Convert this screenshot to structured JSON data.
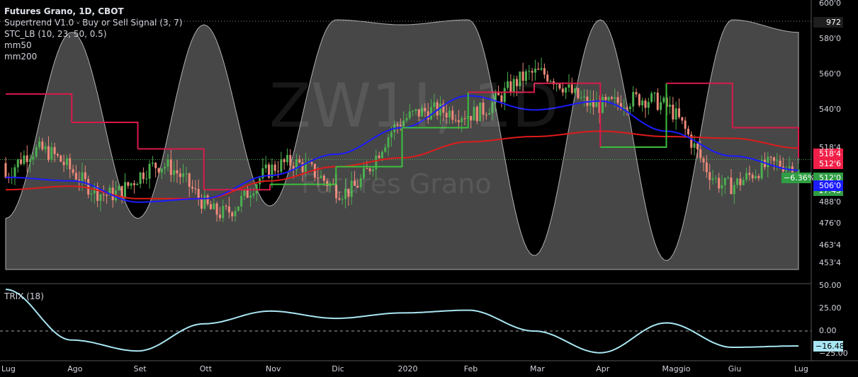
{
  "legend": {
    "title": "Futures Grano, 1D, CBOT",
    "lines": [
      "Supertrend V1.0 - Buy or Sell Signal (3, 7)",
      "STC_LB (10, 23, 50, 0.5)",
      "mm50",
      "mm200"
    ]
  },
  "watermark": {
    "big": "ZW1!, 1D",
    "small": "Futures Grano"
  },
  "trix_label": "TRIX (18)",
  "price_tags": [
    {
      "text": "518'4",
      "color": "#f01f48"
    },
    {
      "text": "512'6",
      "color": "#f01f48"
    },
    {
      "text": "−6.36%",
      "color": "#2f9e44"
    },
    {
      "text": "512'0",
      "color": "#2f9e44"
    },
    {
      "text": "17:43",
      "color": "#2f9e44"
    },
    {
      "text": "506'0",
      "color": "#1c1cff"
    },
    {
      "text": "972",
      "color": "#1e1e1e"
    },
    {
      "text": "−16.48",
      "color": "#a9e6f3"
    }
  ],
  "colors": {
    "background": "#000000",
    "stc_fill": "#9e9e9e",
    "supertrend_down": "#d81a4a",
    "supertrend_up": "#3cbf3c",
    "mm50": "#1c1cff",
    "mm200": "#e01b1b",
    "candle_up": "#4caf50",
    "candle_down": "#ef8a7a",
    "trix": "#a9e6f3"
  },
  "chart_data": [
    {
      "type": "line",
      "title": "Futures Grano, 1D, CBOT",
      "y_axis_ticks": [
        "600'0",
        "580'0",
        "560'0",
        "540'0",
        "518'4",
        "488'0",
        "476'0",
        "463'4",
        "453'4"
      ],
      "x_ticks": [
        "Lug",
        "Ago",
        "Set",
        "Ott",
        "Nov",
        "Dic",
        "2020",
        "Feb",
        "Mar",
        "Apr",
        "Maggio",
        "Giu",
        "Lug"
      ],
      "ylim": [
        450,
        600
      ],
      "x": [
        "Lug",
        "Ago",
        "Set",
        "Ott",
        "Nov",
        "Dic",
        "2020",
        "Feb",
        "Mar",
        "Apr",
        "Maggio",
        "Giu",
        "Lug"
      ],
      "series": [
        {
          "name": "mm50",
          "values": [
            502,
            500,
            488,
            490,
            503,
            515,
            530,
            548,
            540,
            545,
            528,
            514,
            506
          ]
        },
        {
          "name": "mm200",
          "values": [
            495,
            497,
            490,
            490,
            500,
            508,
            513,
            522,
            525,
            528,
            525,
            524,
            518.5
          ]
        },
        {
          "name": "Supertrend V1.0 - Buy or Sell Signal (3, 7)",
          "values": [
            549,
            533,
            518,
            495,
            498,
            508,
            530,
            550,
            555,
            519,
            555,
            530,
            513
          ]
        },
        {
          "name": "STC_LB (10, 23, 50, 0.5)",
          "values": [
            20,
            95,
            20,
            98,
            25,
            100,
            98,
            100,
            5,
            100,
            3,
            100,
            95
          ]
        }
      ],
      "last_price": 512.0,
      "change": "−6.36%"
    },
    {
      "type": "line",
      "title": "TRIX (18)",
      "y_axis_ticks": [
        "50.00",
        "25.00",
        "0.00",
        "−25.00"
      ],
      "ylim": [
        -25,
        50
      ],
      "x": [
        "Lug",
        "Ago",
        "Set",
        "Ott",
        "Nov",
        "Dic",
        "2020",
        "Feb",
        "Mar",
        "Apr",
        "Maggio",
        "Giu",
        "Lug"
      ],
      "series": [
        {
          "name": "TRIX (18)",
          "values": [
            46,
            -10,
            -22,
            8,
            22,
            14,
            20,
            23,
            0,
            -24,
            9,
            -18,
            -16.48
          ]
        }
      ]
    }
  ]
}
